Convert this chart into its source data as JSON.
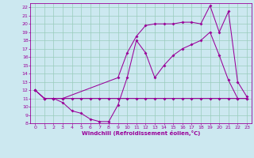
{
  "xlabel": "Windchill (Refroidissement éolien,°C)",
  "bg_color": "#cce8f0",
  "grid_color": "#99ccbb",
  "line_color": "#990099",
  "xlim": [
    -0.5,
    23.5
  ],
  "ylim": [
    8,
    22.5
  ],
  "xticks": [
    0,
    1,
    2,
    3,
    4,
    5,
    6,
    7,
    8,
    9,
    10,
    11,
    12,
    13,
    14,
    15,
    16,
    17,
    18,
    19,
    20,
    21,
    22,
    23
  ],
  "yticks": [
    8,
    9,
    10,
    11,
    12,
    13,
    14,
    15,
    16,
    17,
    18,
    19,
    20,
    21,
    22
  ],
  "line1_x": [
    0,
    1,
    2,
    3,
    4,
    5,
    6,
    7,
    8,
    9,
    10,
    11,
    12,
    13,
    14,
    15,
    16,
    17,
    18,
    19,
    20,
    21,
    22,
    23
  ],
  "line1_y": [
    12,
    11,
    11,
    10.5,
    9.5,
    9.2,
    8.5,
    8.2,
    8.2,
    10.2,
    13.5,
    18.0,
    16.5,
    13.5,
    15.0,
    16.2,
    17.0,
    17.5,
    18.0,
    19.0,
    16.2,
    13.2,
    11.0,
    11.0
  ],
  "line2_x": [
    0,
    1,
    2,
    3,
    4,
    5,
    6,
    7,
    8,
    9,
    10,
    11,
    12,
    13,
    14,
    15,
    16,
    17,
    18,
    19,
    20,
    21,
    22,
    23
  ],
  "line2_y": [
    12,
    11,
    11,
    11,
    11,
    11,
    11,
    11,
    11,
    11,
    11,
    11,
    11,
    11,
    11,
    11,
    11,
    11,
    11,
    11,
    11,
    11,
    11,
    11
  ],
  "line3_x": [
    0,
    1,
    2,
    3,
    9,
    10,
    11,
    12,
    13,
    14,
    15,
    16,
    17,
    18,
    19,
    20,
    21,
    22,
    23
  ],
  "line3_y": [
    12,
    11,
    11,
    11,
    13.5,
    16.5,
    18.5,
    19.8,
    20.0,
    20.0,
    20.0,
    20.2,
    20.2,
    20.0,
    22.2,
    19.0,
    21.5,
    13.0,
    11.2
  ]
}
